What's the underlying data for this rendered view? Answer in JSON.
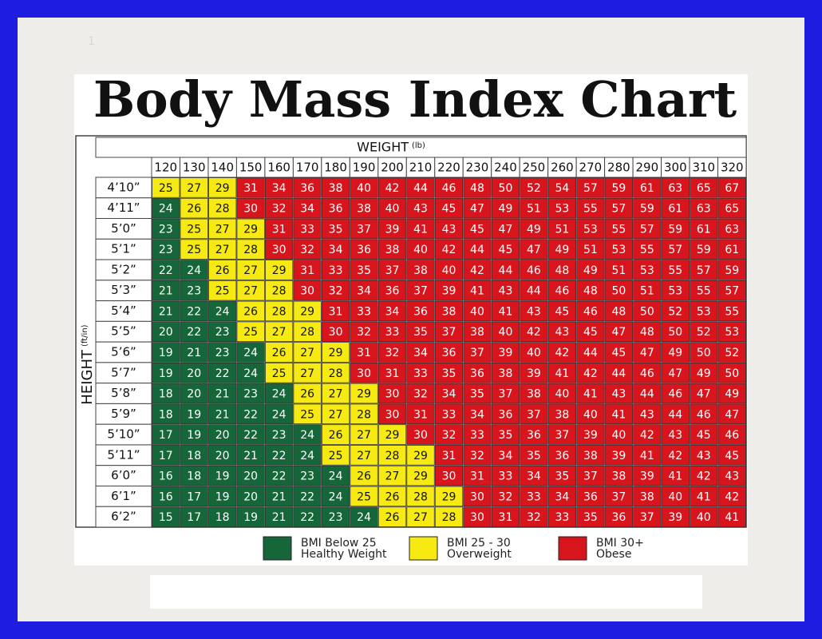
{
  "page_number": "1",
  "title": "Body Mass Index Chart",
  "table": {
    "x_label": "WEIGHT",
    "x_unit": "(lb)",
    "y_label": "HEIGHT",
    "y_unit": "(ft/in)",
    "weights": [
      120,
      130,
      140,
      150,
      160,
      170,
      180,
      190,
      200,
      210,
      220,
      230,
      240,
      250,
      260,
      270,
      280,
      290,
      300,
      310,
      320
    ],
    "rows": [
      {
        "height": "4’10”",
        "values": [
          25,
          27,
          29,
          31,
          34,
          36,
          38,
          40,
          42,
          44,
          46,
          48,
          50,
          52,
          54,
          57,
          59,
          61,
          63,
          65,
          67
        ]
      },
      {
        "height": "4’11”",
        "values": [
          24,
          26,
          28,
          30,
          32,
          34,
          36,
          38,
          40,
          43,
          45,
          47,
          49,
          51,
          53,
          55,
          57,
          59,
          61,
          63,
          65
        ]
      },
      {
        "height": "5’0”",
        "values": [
          23,
          25,
          27,
          29,
          31,
          33,
          35,
          37,
          39,
          41,
          43,
          45,
          47,
          49,
          51,
          53,
          55,
          57,
          59,
          61,
          63
        ]
      },
      {
        "height": "5’1”",
        "values": [
          23,
          25,
          27,
          28,
          30,
          32,
          34,
          36,
          38,
          40,
          42,
          44,
          45,
          47,
          49,
          51,
          53,
          55,
          57,
          59,
          61
        ]
      },
      {
        "height": "5’2”",
        "values": [
          22,
          24,
          26,
          27,
          29,
          31,
          33,
          35,
          37,
          38,
          40,
          42,
          44,
          46,
          48,
          49,
          51,
          53,
          55,
          57,
          59
        ]
      },
      {
        "height": "5’3”",
        "values": [
          21,
          23,
          25,
          27,
          28,
          30,
          32,
          34,
          36,
          37,
          39,
          41,
          43,
          44,
          46,
          48,
          50,
          51,
          53,
          55,
          57
        ]
      },
      {
        "height": "5’4”",
        "values": [
          21,
          22,
          24,
          26,
          28,
          29,
          31,
          33,
          34,
          36,
          38,
          40,
          41,
          43,
          45,
          46,
          48,
          50,
          52,
          53,
          55
        ]
      },
      {
        "height": "5’5”",
        "values": [
          20,
          22,
          23,
          25,
          27,
          28,
          30,
          32,
          33,
          35,
          37,
          38,
          40,
          42,
          43,
          45,
          47,
          48,
          50,
          52,
          53
        ]
      },
      {
        "height": "5’6”",
        "values": [
          19,
          21,
          23,
          24,
          26,
          27,
          29,
          31,
          32,
          34,
          36,
          37,
          39,
          40,
          42,
          44,
          45,
          47,
          49,
          50,
          52
        ]
      },
      {
        "height": "5’7”",
        "values": [
          19,
          20,
          22,
          24,
          25,
          27,
          28,
          30,
          31,
          33,
          35,
          36,
          38,
          39,
          41,
          42,
          44,
          46,
          47,
          49,
          50
        ]
      },
      {
        "height": "5’8”",
        "values": [
          18,
          20,
          21,
          23,
          24,
          26,
          27,
          29,
          30,
          32,
          34,
          35,
          37,
          38,
          40,
          41,
          43,
          44,
          46,
          47,
          49
        ]
      },
      {
        "height": "5’9”",
        "values": [
          18,
          19,
          21,
          22,
          24,
          25,
          27,
          28,
          30,
          31,
          33,
          34,
          36,
          37,
          38,
          40,
          41,
          43,
          44,
          46,
          47
        ]
      },
      {
        "height": "5’10”",
        "values": [
          17,
          19,
          20,
          22,
          23,
          24,
          26,
          27,
          29,
          30,
          32,
          33,
          35,
          36,
          37,
          39,
          40,
          42,
          43,
          45,
          46
        ]
      },
      {
        "height": "5’11”",
        "values": [
          17,
          18,
          20,
          21,
          22,
          24,
          25,
          27,
          28,
          29,
          31,
          32,
          34,
          35,
          36,
          38,
          39,
          41,
          42,
          43,
          45
        ]
      },
      {
        "height": "6’0”",
        "values": [
          16,
          18,
          19,
          20,
          22,
          23,
          24,
          26,
          27,
          29,
          30,
          31,
          33,
          34,
          35,
          37,
          38,
          39,
          41,
          42,
          43
        ]
      },
      {
        "height": "6’1”",
        "values": [
          16,
          17,
          19,
          20,
          21,
          22,
          24,
          25,
          26,
          28,
          29,
          30,
          32,
          33,
          34,
          36,
          37,
          38,
          40,
          41,
          42
        ]
      },
      {
        "height": "6’2”",
        "values": [
          15,
          17,
          18,
          19,
          21,
          22,
          23,
          24,
          26,
          27,
          28,
          30,
          31,
          32,
          33,
          35,
          36,
          37,
          39,
          40,
          41
        ]
      }
    ]
  },
  "legend": [
    {
      "label": "BMI Below 25",
      "caption": "Healthy Weight",
      "color": "#15673a",
      "max": 25
    },
    {
      "label": "BMI  25 - 30",
      "caption": "Overweight",
      "color": "#f6ea12",
      "min": 25,
      "max": 30
    },
    {
      "label": "BMI 30+",
      "caption": "Obese",
      "color": "#d8151c",
      "min": 30
    }
  ]
}
